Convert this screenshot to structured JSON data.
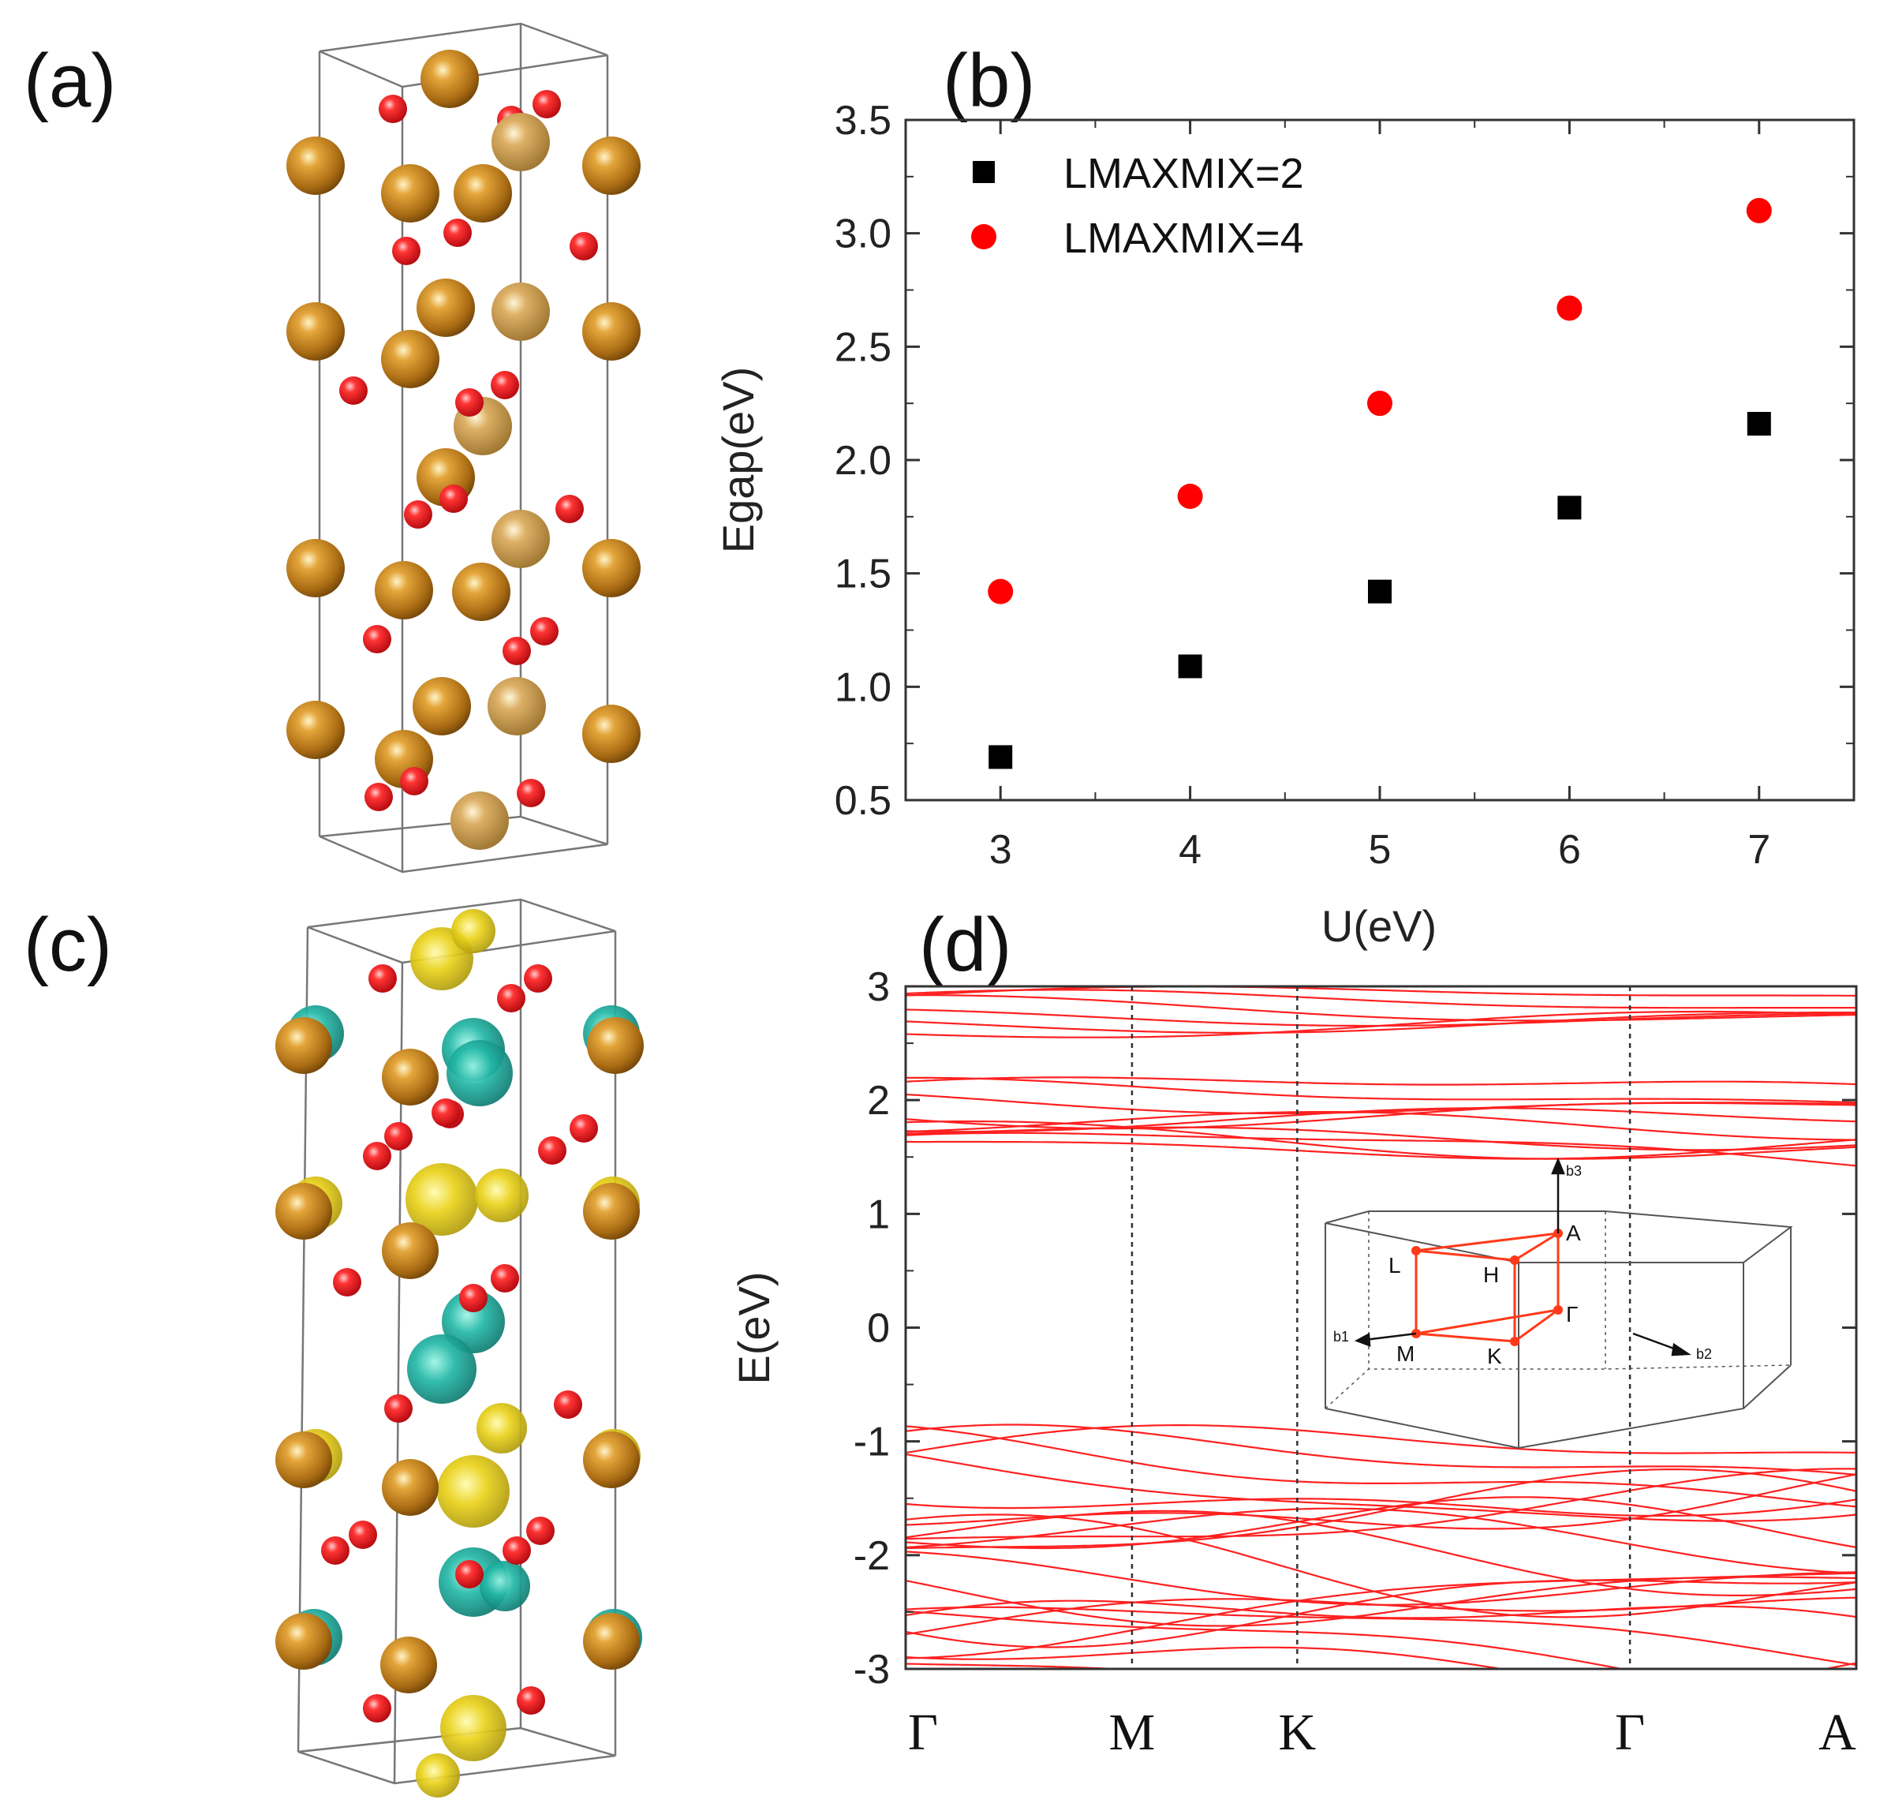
{
  "panels": {
    "a": {
      "label": "(a)"
    },
    "b": {
      "label": "(b)"
    },
    "c": {
      "label": "(c)"
    },
    "d": {
      "label": "(d)"
    }
  },
  "colors": {
    "fe_atom": "#b87a1a",
    "o_atom": "#e0202a",
    "spin_up": "#1aa89a",
    "spin_down": "#e6cf14",
    "series_lmaxmix2": "#000000",
    "series_lmaxmix4": "#ff0000",
    "bands": "#ff2020"
  },
  "chart_data": [
    {
      "id": "egap-vs-u",
      "type": "scatter",
      "title": "",
      "xlabel": "U(eV)",
      "ylabel": "Egap(eV)",
      "xlim": [
        2.5,
        7.5
      ],
      "ylim": [
        0.5,
        3.5
      ],
      "xticks": [
        "3",
        "4",
        "5",
        "6",
        "7"
      ],
      "yticks": [
        "0.5",
        "1.0",
        "1.5",
        "2.0",
        "2.5",
        "3.0",
        "3.5"
      ],
      "legend_position": "top-left",
      "series": [
        {
          "name": "LMAXMIX=2",
          "marker": "square",
          "x": [
            3,
            4,
            5,
            6,
            7
          ],
          "y": [
            0.69,
            1.09,
            1.42,
            1.79,
            2.16
          ]
        },
        {
          "name": "LMAXMIX=4",
          "marker": "circle",
          "x": [
            3,
            4,
            5,
            6,
            7
          ],
          "y": [
            1.42,
            1.84,
            2.25,
            2.67,
            3.1
          ]
        }
      ]
    },
    {
      "id": "band-structure",
      "type": "line",
      "title": "",
      "xlabel": "",
      "ylabel": "E(eV)",
      "ylim": [
        -3,
        3
      ],
      "yticks": [
        "3",
        "2",
        "1",
        "0",
        "-1",
        "-2",
        "-3"
      ],
      "kpath_labels": [
        "Γ",
        "M",
        "K",
        "Γ",
        "A"
      ],
      "kpath_positions": [
        0,
        1.0,
        1.73,
        3.2,
        4.2
      ],
      "conduction_band_range": [
        1.35,
        3.0
      ],
      "valence_band_range": [
        -3.0,
        -1.05
      ],
      "band_gap_eV": 2.4,
      "inset_brillouin_zone": {
        "points": [
          "A",
          "L",
          "H",
          "Γ",
          "M",
          "K"
        ],
        "vectors": [
          "b1",
          "b2",
          "b3"
        ]
      }
    }
  ]
}
